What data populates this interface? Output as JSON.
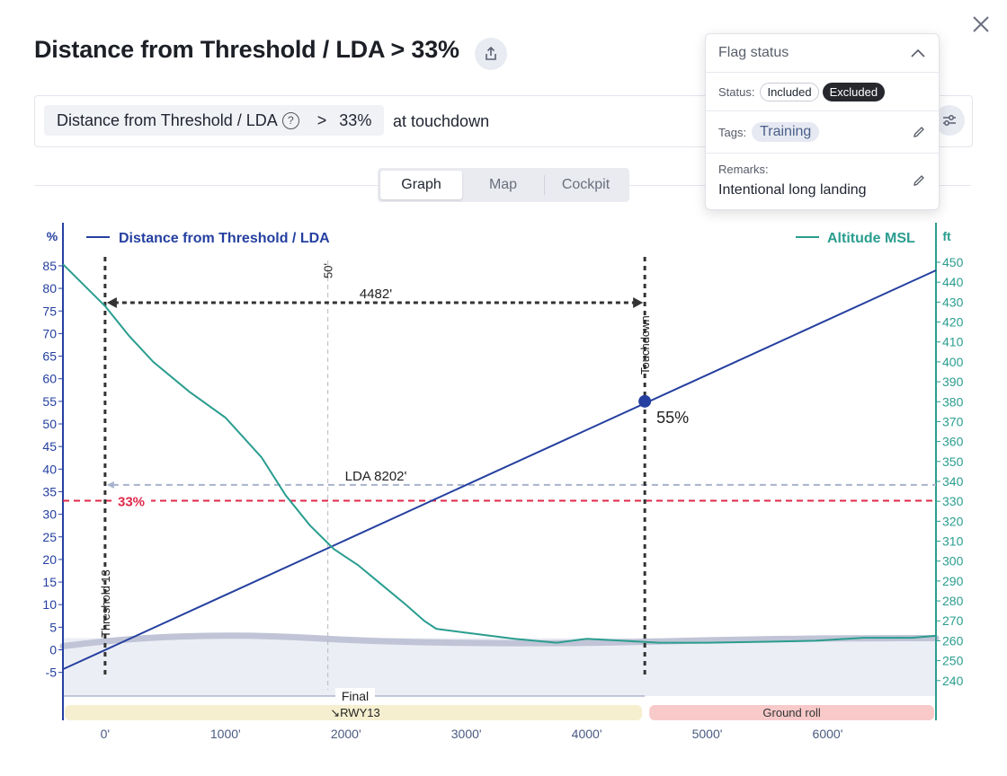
{
  "header": {
    "title": "Distance from Threshold / LDA > 33%"
  },
  "rule": {
    "parameter": "Distance from Threshold / LDA",
    "operator": ">",
    "value": "33%",
    "context": "at touchdown"
  },
  "tabs": [
    {
      "label": "Graph",
      "active": true
    },
    {
      "label": "Map",
      "active": false
    },
    {
      "label": "Cockpit",
      "active": false
    }
  ],
  "flag_panel": {
    "title": "Flag status",
    "status_label": "Status:",
    "status_options": [
      "Included",
      "Excluded"
    ],
    "status_selected": "Excluded",
    "tags_label": "Tags:",
    "tags": [
      "Training"
    ],
    "remarks_label": "Remarks:",
    "remarks": "Intentional long landing"
  },
  "chart_data": {
    "type": "line",
    "x_ticks": [
      "0'",
      "1000'",
      "2000'",
      "3000'",
      "4000'",
      "5000'",
      "6000'"
    ],
    "y_left_unit": "%",
    "y_left_ticks": [
      "85",
      "80",
      "75",
      "70",
      "65",
      "60",
      "55",
      "50",
      "45",
      "40",
      "35",
      "30",
      "25",
      "20",
      "15",
      "10",
      "5",
      "0",
      "-5"
    ],
    "y_right_unit": "ft",
    "y_right_ticks": [
      "450",
      "440",
      "430",
      "420",
      "410",
      "400",
      "390",
      "380",
      "370",
      "360",
      "350",
      "340",
      "330",
      "320",
      "310",
      "300",
      "290",
      "280",
      "270",
      "260",
      "250",
      "240"
    ],
    "xlim": [
      -350,
      6900
    ],
    "ylim_left": [
      -7,
      88
    ],
    "ylim_right": [
      235,
      453
    ],
    "series": [
      {
        "name": "Distance from Threshold / LDA",
        "axis": "left",
        "color": "#2540a0",
        "points": [
          [
            -350,
            -4.3
          ],
          [
            6900,
            84
          ]
        ]
      },
      {
        "name": "Altitude MSL",
        "axis": "right",
        "color": "#2a9d8f",
        "points": [
          [
            -350,
            449
          ],
          [
            -200,
            440
          ],
          [
            0,
            428
          ],
          [
            200,
            413
          ],
          [
            400,
            400
          ],
          [
            700,
            385
          ],
          [
            1000,
            372
          ],
          [
            1300,
            352
          ],
          [
            1500,
            333
          ],
          [
            1700,
            318
          ],
          [
            1900,
            306
          ],
          [
            2100,
            298
          ],
          [
            2300,
            288
          ],
          [
            2500,
            278
          ],
          [
            2650,
            270
          ],
          [
            2750,
            266
          ],
          [
            3000,
            264
          ],
          [
            3400,
            261
          ],
          [
            3750,
            259
          ],
          [
            4000,
            261
          ],
          [
            4300,
            260
          ],
          [
            4600,
            259
          ],
          [
            5000,
            259
          ],
          [
            5500,
            259.5
          ],
          [
            5900,
            260
          ],
          [
            6300,
            261.5
          ],
          [
            6700,
            261.5
          ],
          [
            6900,
            262.5
          ]
        ]
      }
    ],
    "ground_band": {
      "value_ft": 259.5
    },
    "markers": {
      "threshold_label": "Threshold 13",
      "threshold_x": 0,
      "touchdown_label": "Touchdown",
      "touchdown_x": 4482,
      "fifty_label": "50'",
      "fifty_x": 1850,
      "distance_label": "4482'",
      "lda_label": "LDA 8202'",
      "lda_y": 36.5,
      "threshold_pct_label": "33%",
      "threshold_pct": 33,
      "touchdown_point_label": "55%",
      "touchdown_point_value": 55
    },
    "phases": [
      {
        "label": "Final",
        "sublabel": "↘RWY13",
        "from": -350,
        "to": 4482,
        "color": "#f6efcf"
      },
      {
        "label": "Ground roll",
        "from": 4482,
        "to": 6900,
        "color": "#f8c9c9"
      }
    ],
    "colors": {
      "left_axis": "#2540a0",
      "right_axis": "#2a9d8f",
      "threshold_line": "#e0284a",
      "lda_line": "#a8b2cc"
    }
  }
}
